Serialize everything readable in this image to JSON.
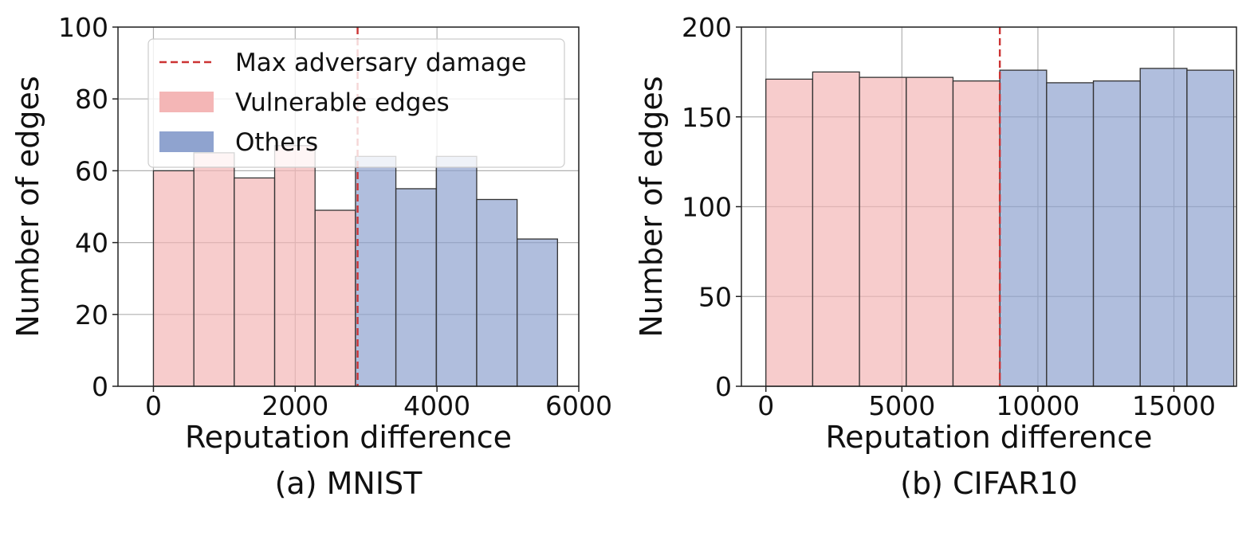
{
  "colors": {
    "vulnerable": "#f4b6b6",
    "others": "#8fa3cf",
    "max_line": "#cc3333",
    "grid": "#b0b0b0",
    "bar_edge": "#333333"
  },
  "legend": {
    "placement": "top-left",
    "items": [
      {
        "label": "Max adversary damage",
        "kind": "dashed-line",
        "color_key": "max_line"
      },
      {
        "label": "Vulnerable edges",
        "kind": "patch",
        "color_key": "vulnerable"
      },
      {
        "label": "Others",
        "kind": "patch",
        "color_key": "others"
      }
    ]
  },
  "chart_data": [
    {
      "type": "bar",
      "caption": "(a) MNIST",
      "xlabel": "Reputation difference",
      "ylabel": "Number of edges",
      "xlim": [
        -500,
        6000
      ],
      "ylim": [
        0,
        100
      ],
      "xticks": [
        0,
        2000,
        4000,
        6000
      ],
      "yticks": [
        0,
        20,
        40,
        60,
        80,
        100
      ],
      "grid": true,
      "has_legend": true,
      "max_adversary_damage": 2880,
      "bin_edges": [
        0,
        570,
        1140,
        1710,
        2280,
        2850,
        3420,
        3990,
        4560,
        5130,
        5700
      ],
      "series": [
        {
          "name": "Vulnerable edges",
          "values": [
            60,
            65,
            58,
            67,
            49,
            null,
            null,
            null,
            null,
            null
          ]
        },
        {
          "name": "Others",
          "values": [
            null,
            null,
            null,
            null,
            null,
            64,
            55,
            64,
            52,
            41
          ]
        }
      ]
    },
    {
      "type": "bar",
      "caption": "(b) CIFAR10",
      "xlabel": "Reputation difference",
      "ylabel": "Number of edges",
      "xlim": [
        -900,
        17300
      ],
      "ylim": [
        0,
        200
      ],
      "xticks": [
        0,
        5000,
        10000,
        15000
      ],
      "yticks": [
        0,
        50,
        100,
        150,
        200
      ],
      "grid": true,
      "has_legend": false,
      "max_adversary_damage": 8600,
      "bin_edges": [
        0,
        1720,
        3440,
        5160,
        6880,
        8600,
        10320,
        12040,
        13760,
        15480,
        17200
      ],
      "series": [
        {
          "name": "Vulnerable edges",
          "values": [
            171,
            175,
            172,
            172,
            170,
            null,
            null,
            null,
            null,
            null
          ]
        },
        {
          "name": "Others",
          "values": [
            null,
            null,
            null,
            null,
            null,
            176,
            169,
            170,
            177,
            176
          ]
        }
      ]
    }
  ]
}
